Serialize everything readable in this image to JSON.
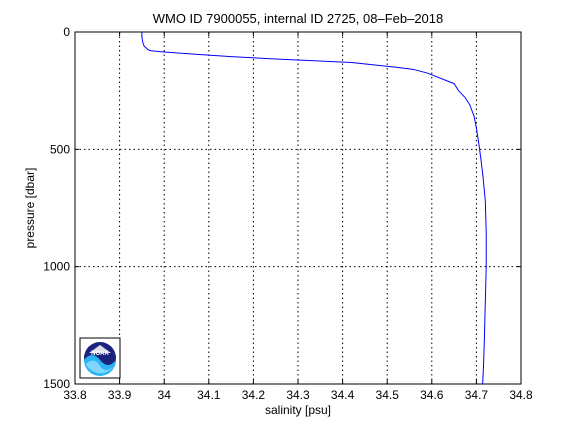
{
  "chart_data": {
    "type": "line",
    "title": "WMO ID 7900055, internal ID 2725, 08–Feb–2018",
    "xlabel": "salinity [psu]",
    "ylabel": "pressure [dbar]",
    "xlim": [
      33.8,
      34.8
    ],
    "ylim": [
      0,
      1500
    ],
    "y_reversed": true,
    "grid": true,
    "xticks": [
      "33.8",
      "33.9",
      "34",
      "34.1",
      "34.2",
      "34.3",
      "34.4",
      "34.5",
      "34.6",
      "34.7",
      "34.8"
    ],
    "yticks": [
      "0",
      "500",
      "1000",
      "1500"
    ],
    "line_color": "#0000ff",
    "logo": "noaa-logo",
    "logo_text": "NOAA",
    "series": [
      {
        "points": [
          [
            33.95,
            0
          ],
          [
            33.95,
            20
          ],
          [
            33.952,
            45
          ],
          [
            33.955,
            60
          ],
          [
            33.96,
            68
          ],
          [
            33.963,
            75
          ],
          [
            33.97,
            80
          ],
          [
            34.0,
            85
          ],
          [
            34.07,
            95
          ],
          [
            34.15,
            105
          ],
          [
            34.25,
            115
          ],
          [
            34.33,
            122
          ],
          [
            34.42,
            130
          ],
          [
            34.47,
            140
          ],
          [
            34.52,
            150
          ],
          [
            34.56,
            160
          ],
          [
            34.59,
            175
          ],
          [
            34.61,
            190
          ],
          [
            34.63,
            205
          ],
          [
            34.65,
            220
          ],
          [
            34.66,
            250
          ],
          [
            34.675,
            280
          ],
          [
            34.685,
            310
          ],
          [
            34.695,
            360
          ],
          [
            34.7,
            410
          ],
          [
            34.705,
            470
          ],
          [
            34.71,
            540
          ],
          [
            34.715,
            620
          ],
          [
            34.72,
            720
          ],
          [
            34.722,
            850
          ],
          [
            34.722,
            1000
          ],
          [
            34.72,
            1150
          ],
          [
            34.718,
            1300
          ],
          [
            34.716,
            1420
          ],
          [
            34.714,
            1500
          ]
        ]
      }
    ]
  }
}
